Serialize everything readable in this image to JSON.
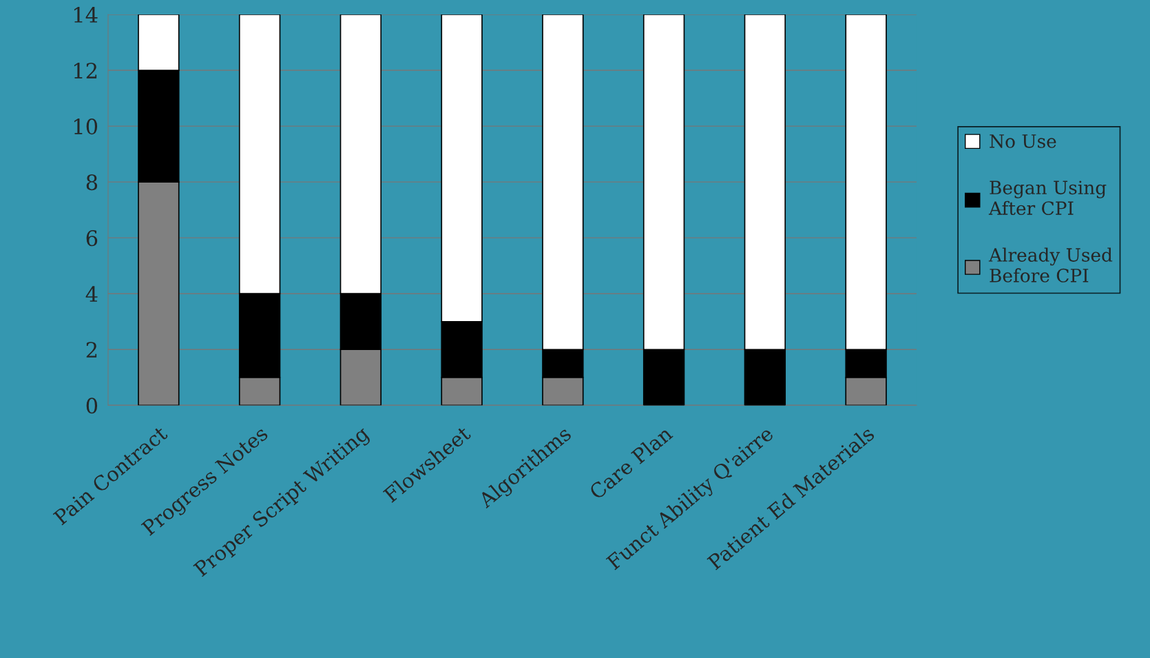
{
  "chart_data": {
    "type": "bar",
    "stacked": true,
    "categories": [
      "Pain Contract",
      "Progress Notes",
      "Proper Script Writing",
      "Flowsheet",
      "Algorithms",
      "Care Plan",
      "Funct Ability Q'airre",
      "Patient Ed Materials"
    ],
    "series": [
      {
        "name": "Already Used\nBefore CPI",
        "color": "#808080",
        "values": [
          8,
          1,
          2,
          1,
          1,
          0,
          0,
          1
        ]
      },
      {
        "name": "Began Using\nAfter CPI",
        "color": "#000000",
        "values": [
          4,
          3,
          2,
          2,
          1,
          2,
          2,
          1
        ]
      },
      {
        "name": "No Use",
        "color": "#ffffff",
        "values": [
          2,
          10,
          10,
          11,
          12,
          12,
          12,
          12
        ]
      }
    ],
    "ylim": [
      0,
      14
    ],
    "yticks": [
      0,
      2,
      4,
      6,
      8,
      10,
      12,
      14
    ],
    "grid": "y",
    "legend": "right"
  }
}
